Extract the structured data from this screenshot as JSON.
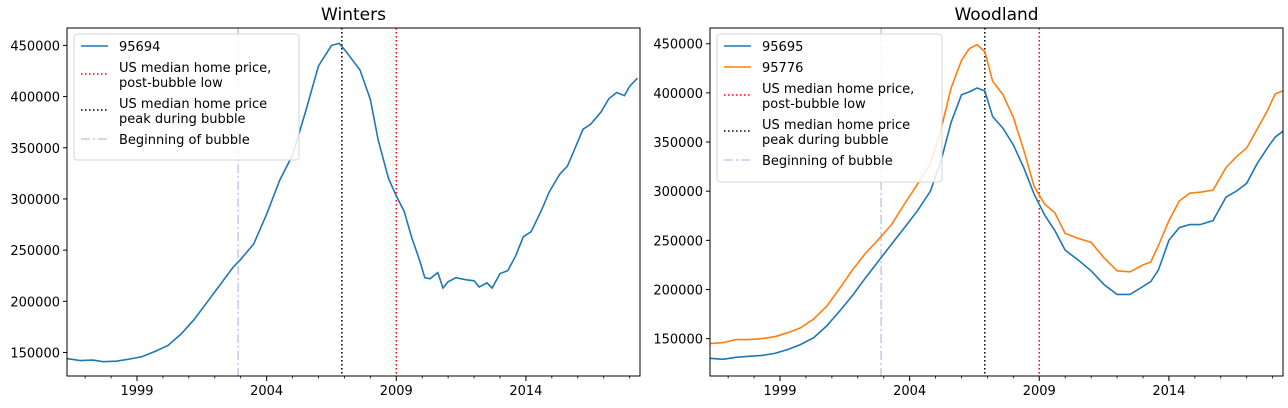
{
  "chart_data": [
    {
      "type": "line",
      "title": "Winters",
      "xlabel": "",
      "ylabel": "",
      "xlim": [
        1996.3,
        2018.4
      ],
      "ylim": [
        127000,
        467000
      ],
      "x_ticks": [
        1999,
        2004,
        2009,
        2014
      ],
      "y_ticks": [
        150000,
        200000,
        250000,
        300000,
        350000,
        400000,
        450000
      ],
      "grid": false,
      "legend_position": "top-left",
      "series": [
        {
          "name": "95694",
          "color": "#1f77b4",
          "x": [
            1996.3,
            1996.8,
            1997.3,
            1997.7,
            1998.2,
            1998.7,
            1999.2,
            1999.7,
            2000.2,
            2000.7,
            2001.2,
            2001.7,
            2002.2,
            2002.7,
            2003.0,
            2003.5,
            2004.0,
            2004.5,
            2005.0,
            2005.5,
            2006.0,
            2006.5,
            2006.8,
            2007.0,
            2007.3,
            2007.6,
            2008.0,
            2008.3,
            2008.7,
            2009.0,
            2009.3,
            2009.6,
            2009.9,
            2010.1,
            2010.3,
            2010.6,
            2010.8,
            2011.0,
            2011.3,
            2011.7,
            2012.0,
            2012.2,
            2012.5,
            2012.7,
            2013.0,
            2013.3,
            2013.6,
            2013.9,
            2014.2,
            2014.6,
            2014.9,
            2015.3,
            2015.6,
            2015.9,
            2016.2,
            2016.5,
            2016.9,
            2017.2,
            2017.5,
            2017.8,
            2018.0,
            2018.3
          ],
          "y": [
            144000,
            142000,
            142500,
            141000,
            141500,
            143500,
            146000,
            151000,
            157000,
            168000,
            182000,
            199000,
            216000,
            233000,
            241000,
            256000,
            285000,
            318000,
            343000,
            385000,
            430000,
            450000,
            452000,
            446000,
            436000,
            426000,
            397000,
            358000,
            320000,
            303000,
            288000,
            262000,
            240000,
            223000,
            222000,
            228000,
            213000,
            219000,
            223000,
            221000,
            220000,
            214000,
            218000,
            213000,
            227000,
            230000,
            244000,
            263000,
            268000,
            289000,
            307000,
            324000,
            332000,
            350000,
            368000,
            373000,
            385000,
            398000,
            404000,
            401000,
            410000,
            418000
          ]
        }
      ],
      "vlines": [
        {
          "name": "US median home price,\npost-bubble low",
          "x": 2009.0,
          "color": "#ff0000",
          "style": "dotted"
        },
        {
          "name": "US median home price\npeak during bubble",
          "x": 2006.9,
          "color": "#000000",
          "style": "dotted"
        },
        {
          "name": "Beginning of bubble",
          "x": 2002.9,
          "color": "#c7c6f0",
          "style": "dashdot"
        }
      ]
    },
    {
      "type": "line",
      "title": "Woodland",
      "xlabel": "",
      "ylabel": "",
      "xlim": [
        1996.3,
        2018.4
      ],
      "ylim": [
        112000,
        466000
      ],
      "x_ticks": [
        1999,
        2004,
        2009,
        2014
      ],
      "y_ticks": [
        150000,
        200000,
        250000,
        300000,
        350000,
        400000,
        450000
      ],
      "grid": false,
      "legend_position": "top-left",
      "series": [
        {
          "name": "95695",
          "color": "#1f77b4",
          "x": [
            1996.3,
            1996.8,
            1997.3,
            1997.8,
            1998.3,
            1998.8,
            1999.3,
            1999.8,
            2000.3,
            2000.8,
            2001.3,
            2001.8,
            2002.3,
            2002.8,
            2003.3,
            2003.8,
            2004.3,
            2004.8,
            2005.2,
            2005.6,
            2006.0,
            2006.3,
            2006.6,
            2006.9,
            2007.2,
            2007.6,
            2008.0,
            2008.4,
            2008.8,
            2009.2,
            2009.6,
            2010.0,
            2010.5,
            2011.0,
            2011.5,
            2012.0,
            2012.5,
            2013.0,
            2013.3,
            2013.6,
            2014.0,
            2014.4,
            2014.8,
            2015.2,
            2015.7,
            2016.2,
            2016.6,
            2017.0,
            2017.4,
            2017.8,
            2018.1,
            2018.4
          ],
          "y": [
            130000,
            129000,
            131000,
            132000,
            133000,
            135000,
            139000,
            144000,
            151000,
            163000,
            178000,
            194000,
            212000,
            229000,
            246000,
            263000,
            280000,
            300000,
            330000,
            370000,
            398000,
            401000,
            405000,
            402000,
            376000,
            364000,
            347000,
            324000,
            297000,
            276000,
            260000,
            240000,
            230000,
            219000,
            205000,
            195000,
            195000,
            203000,
            208000,
            220000,
            250000,
            263000,
            266000,
            266000,
            270000,
            294000,
            300000,
            308000,
            328000,
            344000,
            355000,
            361000
          ]
        },
        {
          "name": "95776",
          "color": "#ff7f0e",
          "x": [
            1996.3,
            1996.8,
            1997.3,
            1997.8,
            1998.3,
            1998.8,
            1999.3,
            1999.8,
            2000.3,
            2000.8,
            2001.3,
            2001.8,
            2002.3,
            2002.8,
            2003.3,
            2003.8,
            2004.3,
            2004.8,
            2005.2,
            2005.6,
            2006.0,
            2006.3,
            2006.6,
            2006.9,
            2007.2,
            2007.6,
            2008.0,
            2008.4,
            2008.8,
            2009.2,
            2009.6,
            2010.0,
            2010.5,
            2011.0,
            2011.5,
            2012.0,
            2012.5,
            2013.0,
            2013.3,
            2013.6,
            2014.0,
            2014.4,
            2014.8,
            2015.2,
            2015.7,
            2016.2,
            2016.6,
            2017.0,
            2017.4,
            2017.8,
            2018.1,
            2018.4
          ],
          "y": [
            145000,
            146000,
            149000,
            149000,
            150000,
            152000,
            156000,
            161000,
            170000,
            183000,
            201000,
            220000,
            237000,
            251000,
            266000,
            287000,
            307000,
            328000,
            362000,
            405000,
            433000,
            445000,
            449000,
            442000,
            412000,
            398000,
            375000,
            342000,
            305000,
            287000,
            278000,
            257000,
            252000,
            248000,
            232000,
            219000,
            218000,
            225000,
            228000,
            245000,
            270000,
            290000,
            298000,
            299000,
            301000,
            324000,
            335000,
            344000,
            363000,
            382000,
            399000,
            402000
          ]
        }
      ],
      "vlines": [
        {
          "name": "US median home price,\npost-bubble low",
          "x": 2009.0,
          "color": "#ff0000",
          "style": "dotted"
        },
        {
          "name": "US median home price\npeak during bubble",
          "x": 2006.9,
          "color": "#000000",
          "style": "dotted"
        },
        {
          "name": "Beginning of bubble",
          "x": 2002.9,
          "color": "#c7c6f0",
          "style": "dashdot"
        }
      ]
    }
  ]
}
